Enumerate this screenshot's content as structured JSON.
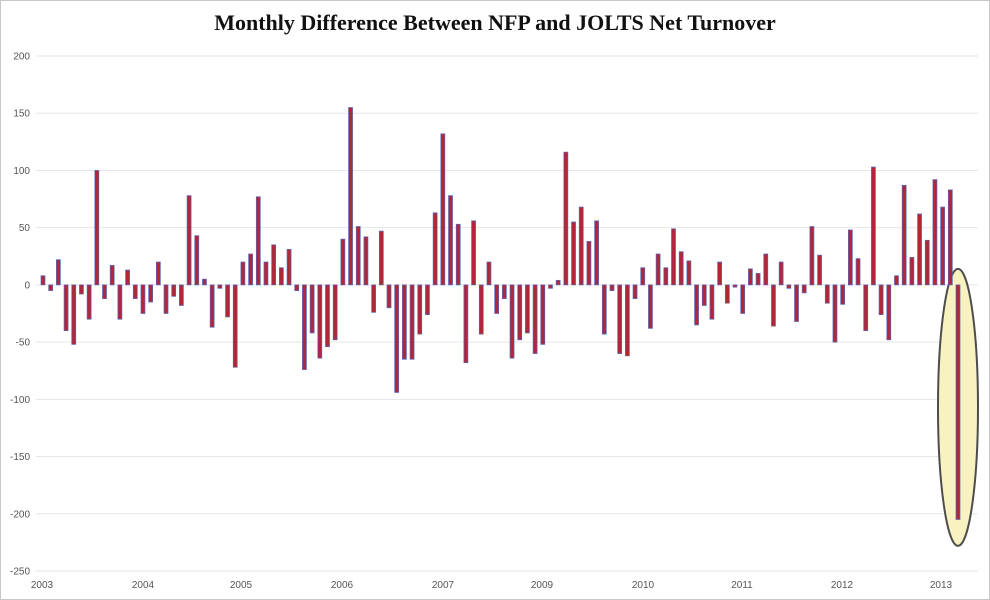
{
  "chart_data": {
    "type": "bar",
    "title": "Monthly Difference Between NFP and JOLTS Net Turnover",
    "xlabel": "",
    "ylabel": "",
    "ylim": [
      -250,
      200
    ],
    "y_ticks": [
      200,
      150,
      100,
      50,
      0,
      -50,
      -100,
      -150,
      -200,
      -250
    ],
    "x_ticks": [
      "2003",
      "2004",
      "2005",
      "2006",
      "2007",
      "2009",
      "2010",
      "2011",
      "2012",
      "2013"
    ],
    "grid": true,
    "series": [
      {
        "values": [
          8,
          -5,
          22,
          -40,
          -52,
          -8,
          -30,
          100,
          -12,
          17,
          -30,
          13,
          -12,
          -25,
          -15,
          20,
          -25,
          -10,
          -18,
          78,
          43,
          5,
          -37,
          -3,
          -28,
          -72,
          20,
          27,
          77,
          20,
          35,
          15,
          31,
          -5,
          -74,
          -42,
          -64,
          -54,
          -48,
          40,
          155,
          51,
          42,
          -24,
          47,
          -20,
          -94,
          -65,
          -65,
          -43,
          -26,
          63,
          132,
          78,
          53,
          -68,
          56,
          -43,
          20,
          -25,
          -12,
          -64,
          -48,
          -42,
          -60,
          -52,
          -3,
          4,
          116,
          55,
          68,
          38,
          56,
          -43,
          -5,
          -60,
          -62,
          -12,
          15,
          -38,
          27,
          15,
          49,
          29,
          21,
          -35,
          -18,
          -30,
          20,
          -16,
          -2,
          -25,
          14,
          10,
          27,
          -36,
          20,
          -3,
          -32,
          -7,
          51,
          26,
          -16,
          -50,
          -17,
          48,
          23,
          -40,
          103,
          -26,
          -48,
          8,
          87,
          24,
          62,
          39,
          92,
          68,
          83,
          -205
        ]
      }
    ],
    "colors": {
      "bar_fill": "#b0273a",
      "bar_edge": "#5a67b8",
      "highlight_fill": "#f7f2bf",
      "highlight_edge": "#4d4d4d",
      "grid": "#e6e6e6"
    },
    "annotation": "highlighted-last-bar"
  }
}
